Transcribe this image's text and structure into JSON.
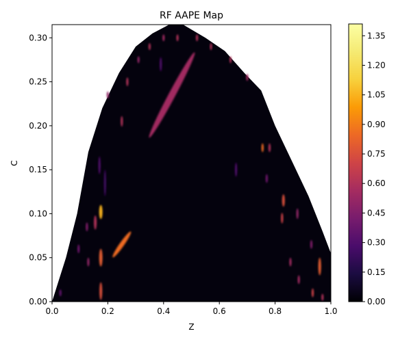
{
  "chart_data": {
    "type": "heatmap",
    "title": "RF AAPE Map",
    "xlabel": "Z",
    "ylabel": "C",
    "xlim": [
      0.0,
      1.0
    ],
    "ylim": [
      0.0,
      0.315
    ],
    "x_ticks": [
      {
        "value": 0.0,
        "label": "0.0"
      },
      {
        "value": 0.2,
        "label": "0.2"
      },
      {
        "value": 0.4,
        "label": "0.4"
      },
      {
        "value": 0.6,
        "label": "0.6"
      },
      {
        "value": 0.8,
        "label": "0.8"
      },
      {
        "value": 1.0,
        "label": "1.0"
      }
    ],
    "y_ticks": [
      {
        "value": 0.0,
        "label": "0.00"
      },
      {
        "value": 0.05,
        "label": "0.05"
      },
      {
        "value": 0.1,
        "label": "0.10"
      },
      {
        "value": 0.15,
        "label": "0.15"
      },
      {
        "value": 0.2,
        "label": "0.20"
      },
      {
        "value": 0.25,
        "label": "0.25"
      },
      {
        "value": 0.3,
        "label": "0.30"
      }
    ],
    "colorbar": {
      "colormap": "inferno",
      "vmin": 0.0,
      "vmax": 1.41,
      "ticks": [
        {
          "value": 0.0,
          "label": "0.00"
        },
        {
          "value": 0.15,
          "label": "0.15"
        },
        {
          "value": 0.3,
          "label": "0.30"
        },
        {
          "value": 0.45,
          "label": "0.45"
        },
        {
          "value": 0.6,
          "label": "0.60"
        },
        {
          "value": 0.75,
          "label": "0.75"
        },
        {
          "value": 0.9,
          "label": "0.90"
        },
        {
          "value": 1.05,
          "label": "1.05"
        },
        {
          "value": 1.2,
          "label": "1.20"
        },
        {
          "value": 1.35,
          "label": "1.35"
        }
      ]
    },
    "region_boundary": [
      [
        0.0,
        0.0
      ],
      [
        0.02,
        0.02
      ],
      [
        0.05,
        0.05
      ],
      [
        0.09,
        0.1
      ],
      [
        0.13,
        0.17
      ],
      [
        0.18,
        0.22
      ],
      [
        0.24,
        0.26
      ],
      [
        0.3,
        0.29
      ],
      [
        0.36,
        0.305
      ],
      [
        0.42,
        0.315
      ],
      [
        0.47,
        0.315
      ],
      [
        0.55,
        0.3
      ],
      [
        0.62,
        0.285
      ],
      [
        0.69,
        0.26
      ],
      [
        0.75,
        0.24
      ],
      [
        0.8,
        0.2
      ],
      [
        0.86,
        0.16
      ],
      [
        0.92,
        0.12
      ],
      [
        0.97,
        0.08
      ],
      [
        1.0,
        0.055
      ],
      [
        1.0,
        0.0
      ]
    ],
    "background_value": 0.02,
    "hotspots": [
      {
        "z": 0.43,
        "c": 0.235,
        "value": 0.55,
        "rz": 0.012,
        "rc": 0.055,
        "angle": -62
      },
      {
        "z": 0.25,
        "c": 0.065,
        "value": 0.85,
        "rz": 0.008,
        "rc": 0.018,
        "angle": -55
      },
      {
        "z": 0.175,
        "c": 0.102,
        "value": 1.05,
        "rz": 0.006,
        "rc": 0.008,
        "angle": 0
      },
      {
        "z": 0.175,
        "c": 0.05,
        "value": 0.8,
        "rz": 0.006,
        "rc": 0.01,
        "angle": 0
      },
      {
        "z": 0.175,
        "c": 0.012,
        "value": 0.75,
        "rz": 0.005,
        "rc": 0.01,
        "angle": 0
      },
      {
        "z": 0.155,
        "c": 0.09,
        "value": 0.6,
        "rz": 0.005,
        "rc": 0.008,
        "angle": 0
      },
      {
        "z": 0.125,
        "c": 0.085,
        "value": 0.45,
        "rz": 0.004,
        "rc": 0.005,
        "angle": 0
      },
      {
        "z": 0.095,
        "c": 0.06,
        "value": 0.4,
        "rz": 0.004,
        "rc": 0.005,
        "angle": 0
      },
      {
        "z": 0.13,
        "c": 0.045,
        "value": 0.5,
        "rz": 0.004,
        "rc": 0.005,
        "angle": 0
      },
      {
        "z": 0.17,
        "c": 0.155,
        "value": 0.3,
        "rz": 0.004,
        "rc": 0.01,
        "angle": 0
      },
      {
        "z": 0.19,
        "c": 0.135,
        "value": 0.25,
        "rz": 0.004,
        "rc": 0.015,
        "angle": 0
      },
      {
        "z": 0.25,
        "c": 0.205,
        "value": 0.6,
        "rz": 0.004,
        "rc": 0.006,
        "angle": 0
      },
      {
        "z": 0.27,
        "c": 0.25,
        "value": 0.6,
        "rz": 0.004,
        "rc": 0.005,
        "angle": 0
      },
      {
        "z": 0.31,
        "c": 0.275,
        "value": 0.5,
        "rz": 0.004,
        "rc": 0.004,
        "angle": 0
      },
      {
        "z": 0.755,
        "c": 0.175,
        "value": 0.85,
        "rz": 0.004,
        "rc": 0.005,
        "angle": 0
      },
      {
        "z": 0.78,
        "c": 0.175,
        "value": 0.6,
        "rz": 0.004,
        "rc": 0.005,
        "angle": 0
      },
      {
        "z": 0.83,
        "c": 0.115,
        "value": 0.75,
        "rz": 0.005,
        "rc": 0.007,
        "angle": 0
      },
      {
        "z": 0.825,
        "c": 0.095,
        "value": 0.7,
        "rz": 0.004,
        "rc": 0.006,
        "angle": 0
      },
      {
        "z": 0.88,
        "c": 0.1,
        "value": 0.5,
        "rz": 0.004,
        "rc": 0.006,
        "angle": 0
      },
      {
        "z": 0.96,
        "c": 0.04,
        "value": 0.8,
        "rz": 0.005,
        "rc": 0.01,
        "angle": 0
      },
      {
        "z": 0.93,
        "c": 0.065,
        "value": 0.45,
        "rz": 0.004,
        "rc": 0.005,
        "angle": 0
      },
      {
        "z": 0.855,
        "c": 0.045,
        "value": 0.55,
        "rz": 0.004,
        "rc": 0.005,
        "angle": 0
      },
      {
        "z": 0.935,
        "c": 0.01,
        "value": 0.7,
        "rz": 0.004,
        "rc": 0.005,
        "angle": 0
      },
      {
        "z": 0.7,
        "c": 0.255,
        "value": 0.55,
        "rz": 0.004,
        "rc": 0.004,
        "angle": 0
      },
      {
        "z": 0.64,
        "c": 0.275,
        "value": 0.6,
        "rz": 0.003,
        "rc": 0.004,
        "angle": 0
      },
      {
        "z": 0.57,
        "c": 0.29,
        "value": 0.6,
        "rz": 0.003,
        "rc": 0.004,
        "angle": 0
      },
      {
        "z": 0.52,
        "c": 0.3,
        "value": 0.6,
        "rz": 0.004,
        "rc": 0.004,
        "angle": 0
      },
      {
        "z": 0.45,
        "c": 0.3,
        "value": 0.6,
        "rz": 0.004,
        "rc": 0.004,
        "angle": 0
      },
      {
        "z": 0.4,
        "c": 0.3,
        "value": 0.55,
        "rz": 0.004,
        "rc": 0.004,
        "angle": 0
      },
      {
        "z": 0.35,
        "c": 0.29,
        "value": 0.6,
        "rz": 0.004,
        "rc": 0.004,
        "angle": 0
      },
      {
        "z": 0.2,
        "c": 0.235,
        "value": 0.5,
        "rz": 0.004,
        "rc": 0.004,
        "angle": 0
      },
      {
        "z": 0.39,
        "c": 0.27,
        "value": 0.3,
        "rz": 0.004,
        "rc": 0.008,
        "angle": 0
      },
      {
        "z": 0.77,
        "c": 0.14,
        "value": 0.4,
        "rz": 0.004,
        "rc": 0.005,
        "angle": 0
      },
      {
        "z": 0.66,
        "c": 0.15,
        "value": 0.3,
        "rz": 0.004,
        "rc": 0.008,
        "angle": 0
      },
      {
        "z": 0.885,
        "c": 0.025,
        "value": 0.55,
        "rz": 0.004,
        "rc": 0.005,
        "angle": 0
      },
      {
        "z": 0.97,
        "c": 0.005,
        "value": 0.6,
        "rz": 0.004,
        "rc": 0.004,
        "angle": 0
      },
      {
        "z": 0.03,
        "c": 0.01,
        "value": 0.35,
        "rz": 0.004,
        "rc": 0.004,
        "angle": 0
      }
    ]
  }
}
